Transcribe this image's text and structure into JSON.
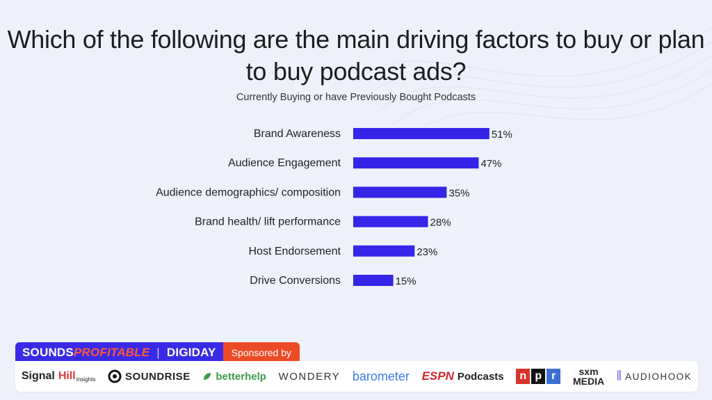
{
  "chart_data": {
    "type": "bar",
    "orientation": "horizontal",
    "title": "Which of the following are the main driving factors to buy or plan to buy podcast ads?",
    "subtitle": "Currently Buying or have Previously Bought Podcasts",
    "categories": [
      "Brand Awareness",
      "Audience Engagement",
      "Audience demographics/ composition",
      "Brand health/ lift performance",
      "Host Endorsement",
      "Drive Conversions"
    ],
    "values": [
      51,
      47,
      35,
      28,
      23,
      15
    ],
    "value_labels": [
      "51%",
      "47%",
      "35%",
      "28%",
      "23%",
      "15%"
    ],
    "xlim": [
      0,
      60
    ],
    "grid": false,
    "bar_color": "#3425e8"
  },
  "footer": {
    "brand_1a": "SOUNDS",
    "brand_1b": "PROFITABLE",
    "brand_sep": "|",
    "brand_2": "DIGIDAY",
    "sponsored_label": "Sponsored by",
    "logos": {
      "signalhill_a": "Signal",
      "signalhill_b": "Hill",
      "signalhill_sub": "Insights",
      "soundrise": "SOUNDRISE",
      "betterhelp": "betterhelp",
      "wondery": "WONDERY",
      "barometer": "barometer",
      "espn": "ESPN",
      "espn_pod": "Podcasts",
      "npr_n": "n",
      "npr_p": "p",
      "npr_r": "r",
      "sxm_top": "sxm",
      "sxm_bottom": "MEDIA",
      "audiohook": "AUDIOHOOK"
    },
    "colors": {
      "brand_bg": "#3a2ae6",
      "sponsor_bg": "#ec4a26",
      "npr_red": "#d9342b",
      "npr_black": "#111111",
      "npr_blue": "#3b6fd1"
    }
  }
}
